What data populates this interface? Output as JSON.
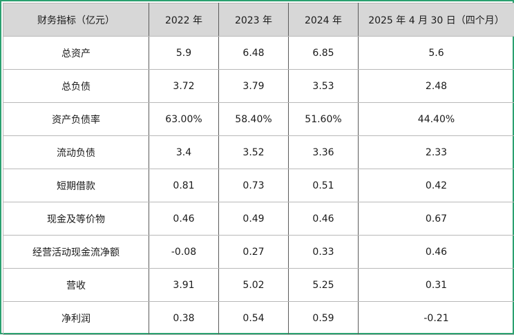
{
  "table": {
    "headers": [
      "财务指标（亿元）",
      "2022 年",
      "2023 年",
      "2024 年",
      "2025 年 4 月 30 日（四个月）"
    ],
    "rows": [
      [
        "总资产",
        "5.9",
        "6.48",
        "6.85",
        "5.6"
      ],
      [
        "总负债",
        "3.72",
        "3.79",
        "3.53",
        "2.48"
      ],
      [
        "资产负债率",
        "63.00%",
        "58.40%",
        "51.60%",
        "44.40%"
      ],
      [
        "流动负债",
        "3.4",
        "3.52",
        "3.36",
        "2.33"
      ],
      [
        "短期借款",
        "0.81",
        "0.73",
        "0.51",
        "0.42"
      ],
      [
        "现金及等价物",
        "0.46",
        "0.49",
        "0.46",
        "0.67"
      ],
      [
        "经营活动现金流净额",
        "-0.08",
        "0.27",
        "0.33",
        "0.46"
      ],
      [
        "营收",
        "3.91",
        "5.02",
        "5.25",
        "0.31"
      ],
      [
        "净利润",
        "0.38",
        "0.54",
        "0.59",
        "-0.21"
      ]
    ]
  },
  "colors": {
    "frame_border": "#2aa06f",
    "header_bg": "#d7d7d7"
  }
}
